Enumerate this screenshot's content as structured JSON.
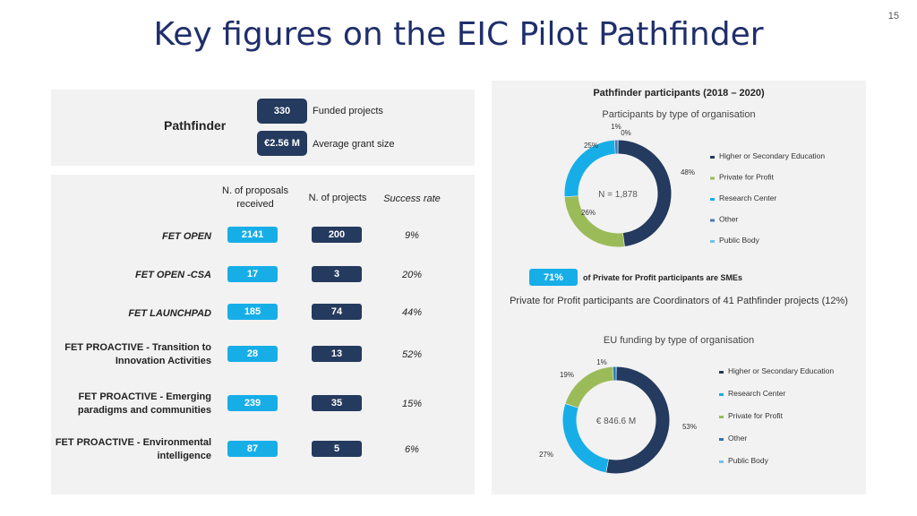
{
  "page": {
    "title": "Key figures on the EIC Pilot Pathfinder",
    "page_number": "15"
  },
  "summary": {
    "label": "Pathfinder",
    "funded_value": "330",
    "funded_label": "Funded projects",
    "grant_value": "€2.56 M",
    "grant_label": "Average grant size"
  },
  "table": {
    "headers": {
      "proposals": "N. of proposals received",
      "projects": "N. of projects",
      "success": "Success rate"
    },
    "rows": [
      {
        "label": "FET OPEN",
        "proposals": "2141",
        "projects": "200",
        "rate": "9%"
      },
      {
        "label": "FET OPEN -CSA",
        "proposals": "17",
        "projects": "3",
        "rate": "20%"
      },
      {
        "label": "FET LAUNCHPAD",
        "proposals": "185",
        "projects": "74",
        "rate": "44%"
      },
      {
        "label_line1": "FET PROACTIVE - Transition to",
        "label_line2": "Innovation Activities",
        "proposals": "28",
        "projects": "13",
        "rate": "52%"
      },
      {
        "label_line1": "FET PROACTIVE - Emerging",
        "label_line2": "paradigms and communities",
        "proposals": "239",
        "projects": "35",
        "rate": "15%"
      },
      {
        "label_line1": "FET PROACTIVE - Environmental",
        "label_line2": "intelligence",
        "proposals": "87",
        "projects": "5",
        "rate": "6%"
      }
    ]
  },
  "right_panel": {
    "heading": "Pathfinder participants (2018 – 2020)",
    "sme_value": "71%",
    "sme_text": "of Private for Profit participants are SMEs",
    "coordinators_text": "Private for Profit participants are Coordinators of 41 Pathfinder projects (12%)"
  },
  "colors": {
    "navy": "#243a5e",
    "olive": "#9bbb59",
    "cyan": "#17aee8",
    "steel": "#4a7ab5",
    "light_blue": "#6fc3f0",
    "title_blue": "#1f2f6b"
  },
  "chart_data": [
    {
      "type": "pie",
      "variant": "donut",
      "title": "Participants by type of organisation",
      "center_label": "N = 1,878",
      "categories": [
        "Higher or Secondary Education",
        "Private for Profit",
        "Research Center",
        "Other",
        "Public Body"
      ],
      "values": [
        48,
        26,
        25,
        1,
        0
      ],
      "labels": [
        "48%",
        "26%",
        "25%",
        "1%",
        "0%"
      ],
      "colors": [
        "#243a5e",
        "#9bbb59",
        "#17aee8",
        "#4a7ab5",
        "#6fc3f0"
      ],
      "legend_position": "right"
    },
    {
      "type": "pie",
      "variant": "donut",
      "title": "EU funding by type of organisation",
      "center_label": "€ 846.6 M",
      "categories": [
        "Higher or Secondary Education",
        "Research Center",
        "Private for Profit",
        "Other",
        "Public Body"
      ],
      "values": [
        53,
        27,
        19,
        1,
        0
      ],
      "labels": [
        "53%",
        "27%",
        "19%",
        "1%",
        ""
      ],
      "slice_order": [
        0,
        1,
        2,
        3,
        4
      ],
      "colors": [
        "#243a5e",
        "#17aee8",
        "#9bbb59",
        "#2e75b6",
        "#6fc3f0"
      ],
      "legend_position": "right"
    }
  ]
}
